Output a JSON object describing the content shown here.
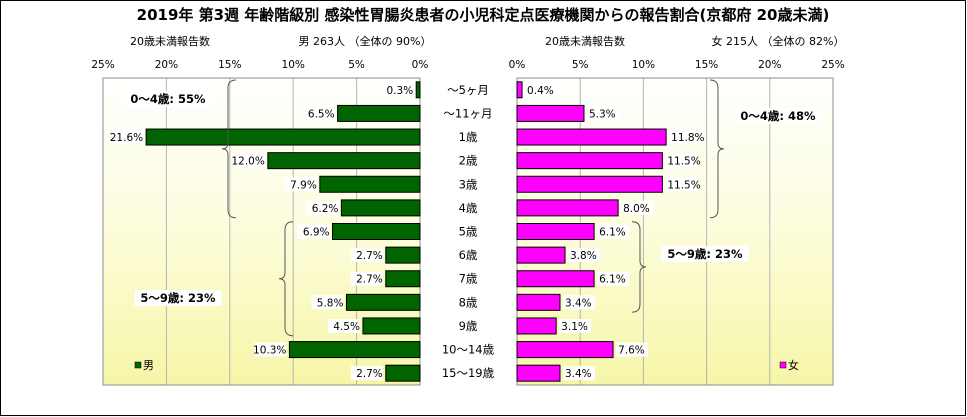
{
  "chart_data": {
    "type": "bar",
    "title": "2019年 第3週 年齢階級別 感染性胃腸炎患者の小児科定点医療機関からの報告割合(京都府 20歳未満)",
    "categories": [
      "～5ヶ月",
      "～11ヶ月",
      "1歳",
      "2歳",
      "3歳",
      "4歳",
      "5歳",
      "6歳",
      "7歳",
      "8歳",
      "9歳",
      "10～14歳",
      "15～19歳"
    ],
    "left_panel": {
      "header_left": "20歳未満報告数",
      "header_right": "男  263人 （全体の  90%）",
      "ticks": [
        "25%",
        "20%",
        "15%",
        "10%",
        "5%",
        "0%"
      ],
      "xlim": [
        0,
        25
      ],
      "legend": "男",
      "bar_color": "#006400",
      "series": [
        {
          "name": "男",
          "values": [
            0.3,
            6.5,
            21.6,
            12.0,
            7.9,
            6.2,
            6.9,
            2.7,
            2.7,
            5.8,
            4.5,
            10.3,
            2.7
          ]
        }
      ],
      "labels": [
        "0.3%",
        "6.5%",
        "21.6%",
        "12.0%",
        "7.9%",
        "6.2%",
        "6.9%",
        "2.7%",
        "2.7%",
        "5.8%",
        "4.5%",
        "10.3%",
        "2.7%"
      ],
      "group_labels": [
        {
          "text": "0～4歳: 55%",
          "from": 0,
          "to": 5
        },
        {
          "text": "5～9歳: 23%",
          "from": 6,
          "to": 10
        }
      ]
    },
    "right_panel": {
      "header_left": "20歳未満報告数",
      "header_right": "女  215人 （全体の  82%）",
      "ticks": [
        "0%",
        "5%",
        "10%",
        "15%",
        "20%",
        "25%"
      ],
      "xlim": [
        0,
        25
      ],
      "legend": "女",
      "bar_color": "#ff00ff",
      "series": [
        {
          "name": "女",
          "values": [
            0.4,
            5.3,
            11.8,
            11.5,
            11.5,
            8.0,
            6.1,
            3.8,
            6.1,
            3.4,
            3.1,
            7.6,
            3.4
          ]
        }
      ],
      "labels": [
        "0.4%",
        "5.3%",
        "11.8%",
        "11.5%",
        "11.5%",
        "8.0%",
        "6.1%",
        "3.8%",
        "6.1%",
        "3.4%",
        "3.1%",
        "7.6%",
        "3.4%"
      ],
      "group_labels": [
        {
          "text": "0～4歳: 48%",
          "from": 0,
          "to": 5
        },
        {
          "text": "5～9歳: 23%",
          "from": 6,
          "to": 9
        }
      ]
    },
    "grid": true,
    "legend_position": "bottom-left"
  }
}
